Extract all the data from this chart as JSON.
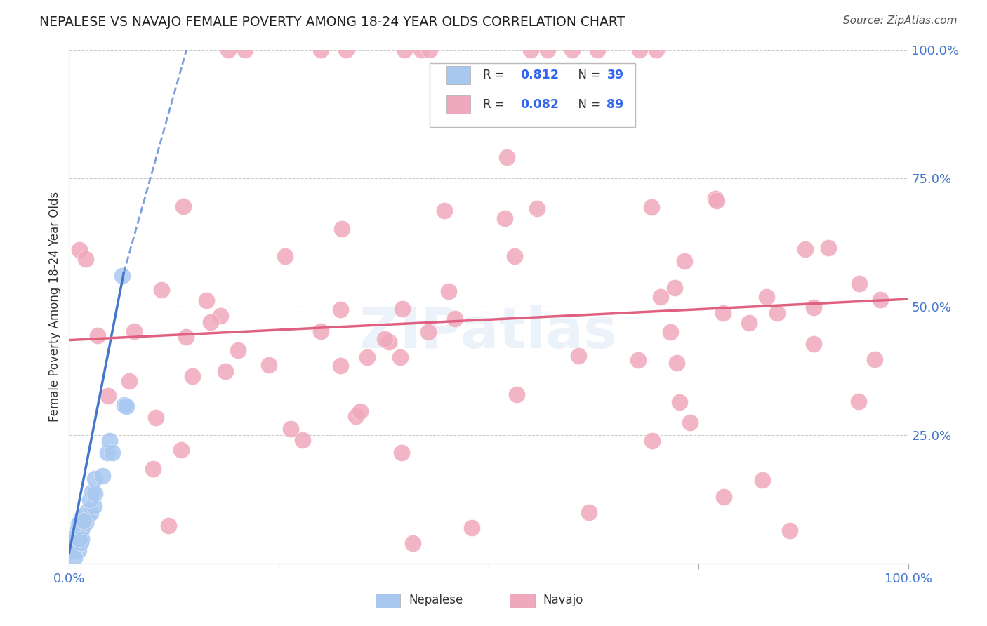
{
  "title": "NEPALESE VS NAVAJO FEMALE POVERTY AMONG 18-24 YEAR OLDS CORRELATION CHART",
  "source": "Source: ZipAtlas.com",
  "ylabel": "Female Poverty Among 18-24 Year Olds",
  "nepalese_color": "#a8c8f0",
  "navajo_color": "#f0a8bc",
  "nepalese_line_color": "#4477cc",
  "navajo_line_color": "#e06080",
  "legend_r1_label": "R = ",
  "legend_r1_val": "0.812",
  "legend_n1_label": "N = ",
  "legend_n1_val": "39",
  "legend_r2_label": "R = 0.082",
  "legend_r2_val": "0.082",
  "legend_n2_label": "N = ",
  "legend_n2_val": "89",
  "watermark": "ZIPatlas",
  "tick_color": "#4477cc",
  "grid_color": "#cccccc",
  "nepalese_seed": 12345,
  "navajo_seed": 67890
}
